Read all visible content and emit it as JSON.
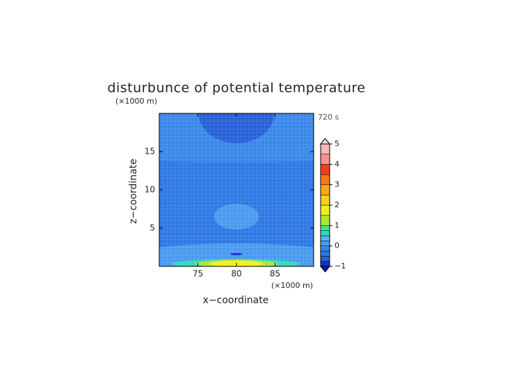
{
  "chart_data": {
    "type": "contour",
    "title": "disturbunce of potential temperature",
    "time_label": "720 s",
    "xlabel": "x−coordinate",
    "ylabel": "z−coordinate",
    "xunit": "(×1000 m)",
    "yunit": "(×1000 m)",
    "xlim": [
      70,
      90
    ],
    "ylim": [
      0,
      20
    ],
    "xticks": [
      75,
      80,
      85
    ],
    "yticks": [
      5,
      10,
      15
    ],
    "background_level": -0.3,
    "regions": [
      {
        "level": -0.1,
        "cx": 80,
        "cy": 20,
        "rx": 40,
        "ry": 6.4
      },
      {
        "level": -0.6,
        "cx": 80,
        "cy": 20,
        "rx": 4.9,
        "ry": 3.9
      },
      {
        "level": 0.1,
        "cx": 80,
        "cy": 6.5,
        "rx": 2.9,
        "ry": 1.7
      },
      {
        "level": 0.1,
        "cx": 80,
        "cy": 0,
        "rx": 18,
        "ry": 3.0
      },
      {
        "level": -0.9,
        "cx": 80,
        "cy": 1.6,
        "rx": 0.8,
        "ry": 0.15
      },
      {
        "level": 0.6,
        "cx": 79.9,
        "cy": 0.35,
        "rx": 8.3,
        "ry": 0.6
      },
      {
        "level": 1.2,
        "cx": 80,
        "cy": 0.35,
        "rx": 5.3,
        "ry": 0.5
      },
      {
        "level": 1.7,
        "cx": 80,
        "cy": 0.35,
        "rx": 3.5,
        "ry": 0.45
      }
    ],
    "colorbar": {
      "levels": [
        -1,
        -0.75,
        -0.5,
        -0.25,
        0,
        0.25,
        0.5,
        0.75,
        1,
        1.5,
        2,
        2.5,
        3,
        3.5,
        4,
        4.5,
        5
      ],
      "colors": [
        "#1030d0",
        "#2860d8",
        "#2f78e4",
        "#3a88ea",
        "#4a9af0",
        "#5ab4f4",
        "#30d8c0",
        "#40e890",
        "#a8e830",
        "#f0f020",
        "#f8d020",
        "#f8a818",
        "#f87818",
        "#f04018",
        "#f89090",
        "#f8b8b8"
      ],
      "under_color": "#0818c0",
      "over_color": "#fad4d4",
      "ticks": [
        {
          "value": -1,
          "label": "−1"
        },
        0,
        1,
        2,
        3,
        4,
        5
      ]
    }
  }
}
